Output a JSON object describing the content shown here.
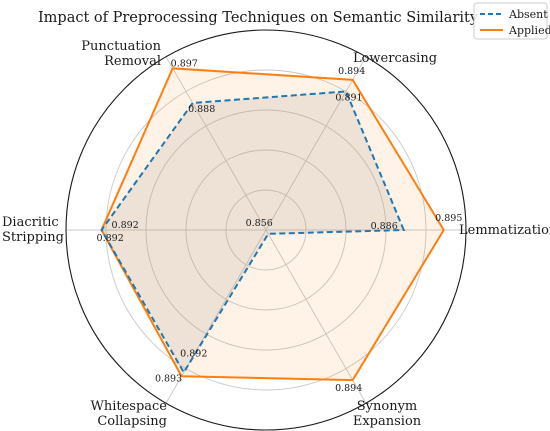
{
  "chart_data": {
    "type": "radar",
    "title": "Impact of Preprocessing Techniques on Semantic Similarity",
    "categories": [
      "Lemmatization",
      "Lowercasing",
      "Punctuation\nRemoval",
      "Diacritic\nStripping",
      "Whitespace\nCollapsing",
      "Synonym\nExpansion"
    ],
    "series": [
      {
        "name": "Absent",
        "values": [
          0.886,
          0.891,
          0.888,
          0.892,
          0.892,
          0.856
        ],
        "color": "#1f77b4",
        "fill": "#9aa3a8",
        "style": "dashed"
      },
      {
        "name": "Applied",
        "values": [
          0.895,
          0.894,
          0.897,
          0.892,
          0.893,
          0.894
        ],
        "color": "#ff7f0e",
        "fill": "#ff7f0e",
        "style": "solid"
      }
    ],
    "rlim": [
      0.855,
      0.9
    ],
    "grid": true,
    "legend": "top-right"
  }
}
